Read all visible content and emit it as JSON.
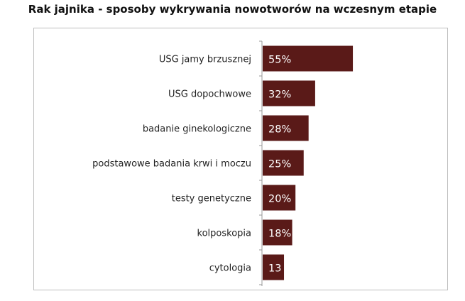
{
  "chart_data": {
    "type": "bar",
    "orientation": "horizontal",
    "title": "Rak jajnika - sposoby wykrywania nowotworów na wczesnym etapie",
    "categories": [
      "USG jamy brzusznej",
      "USG dopochwowe",
      "badanie ginekologiczne",
      "podstawowe badania krwi i moczu",
      "testy genetyczne",
      "kolposkopia",
      "cytologia"
    ],
    "values": [
      55,
      32,
      28,
      25,
      20,
      18,
      13
    ],
    "value_labels": [
      "55%",
      "32%",
      "28%",
      "25%",
      "20%",
      "18%",
      "13"
    ],
    "xlim": [
      0,
      100
    ],
    "grid": false,
    "legend": "none",
    "bar_color": "#5a1a18"
  }
}
